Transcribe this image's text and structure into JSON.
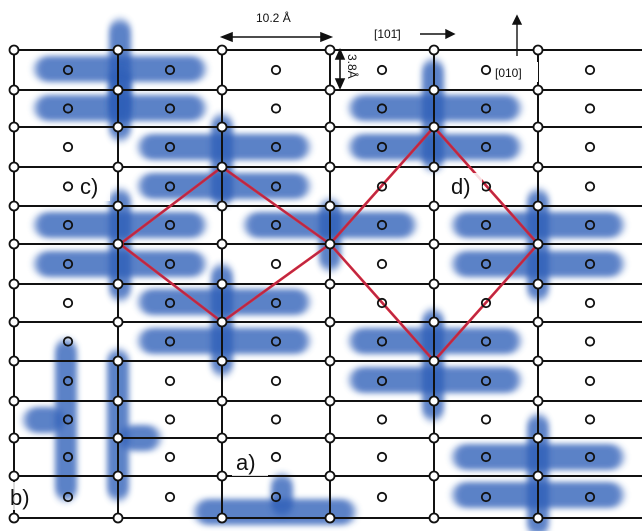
{
  "annotations": {
    "dim_horizontal": "10.2 Å",
    "dim_vertical": "3.8Å",
    "direction_right": "[10̅]",
    "direction_right_text": "[101̄]",
    "direction_up": "[010]"
  },
  "panel_labels": {
    "a": "a)",
    "b": "b)",
    "c": "c)",
    "d": "d)"
  },
  "colors": {
    "grid": "#111111",
    "molecule": "#2f5fb8",
    "diamond": "#e0262a",
    "diamond_inner": "#6a2d8a",
    "site_open": "#ffffff"
  }
}
